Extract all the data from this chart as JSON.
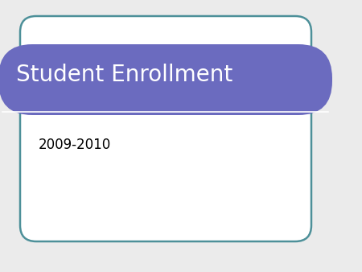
{
  "title": "Student Enrollment",
  "subtitle": "2009-2010",
  "bg_color": "#ebebeb",
  "slide_bg": "#ffffff",
  "slide_border_color": "#4d9099",
  "header_color": "#6b6bbf",
  "header_text_color": "#ffffff",
  "header_line_color": "#ffffff",
  "subtitle_color": "#000000",
  "title_fontsize": 20,
  "subtitle_fontsize": 12,
  "fig_width": 4.5,
  "fig_height": 3.38,
  "dpi": 100
}
